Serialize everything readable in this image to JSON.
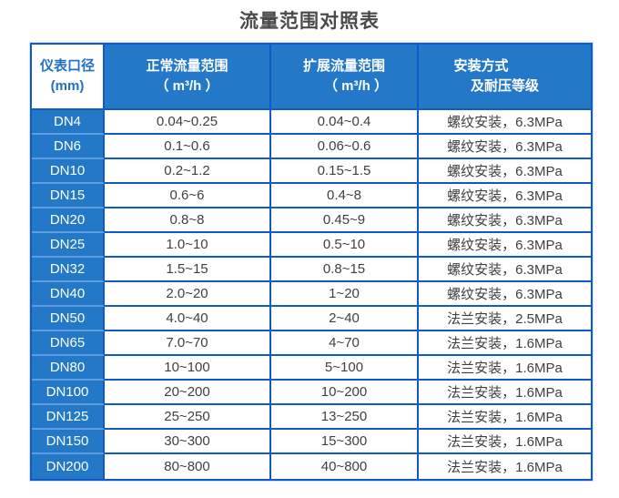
{
  "page": {
    "title": "流量范围对照表"
  },
  "colors": {
    "header_blue": "#2478c8",
    "grid_blue": "#1059c8",
    "label_divider_blue": "#5d9dde",
    "data_text": "#404040",
    "title_text": "#4a4a4a",
    "corner_text_blue": "#2071c2"
  },
  "table": {
    "header": {
      "col1": {
        "line1": "仪表口径",
        "line2": "(mm)"
      },
      "col2": {
        "line1": "正常流量范围",
        "line2": "（ m³/h ）"
      },
      "col3": {
        "line1": "扩展流量范围",
        "line2": "（ m³/h ）"
      },
      "col4": {
        "line1": "安装方式",
        "line2": "及耐压等级"
      }
    },
    "rows": [
      {
        "dn": "DN4",
        "normal": "0.04~0.25",
        "extended": "0.04~0.4",
        "install": "螺纹安装，6.3MPa"
      },
      {
        "dn": "DN6",
        "normal": "0.1~0.6",
        "extended": "0.06~0.6",
        "install": "螺纹安装，6.3MPa"
      },
      {
        "dn": "DN10",
        "normal": "0.2~1.2",
        "extended": "0.15~1.5",
        "install": "螺纹安装，6.3MPa"
      },
      {
        "dn": "DN15",
        "normal": "0.6~6",
        "extended": "0.4~8",
        "install": "螺纹安装，6.3MPa"
      },
      {
        "dn": "DN20",
        "normal": "0.8~8",
        "extended": "0.45~9",
        "install": "螺纹安装，6.3MPa"
      },
      {
        "dn": "DN25",
        "normal": "1.0~10",
        "extended": "0.5~10",
        "install": "螺纹安装，6.3MPa"
      },
      {
        "dn": "DN32",
        "normal": "1.5~15",
        "extended": "0.8~15",
        "install": "螺纹安装，6.3MPa"
      },
      {
        "dn": "DN40",
        "normal": "2.0~20",
        "extended": "1~20",
        "install": "螺纹安装，6.3MPa"
      },
      {
        "dn": "DN50",
        "normal": "4.0~40",
        "extended": "2~40",
        "install": "法兰安装，2.5MPa"
      },
      {
        "dn": "DN65",
        "normal": "7.0~70",
        "extended": "4~70",
        "install": "法兰安装，1.6MPa"
      },
      {
        "dn": "DN80",
        "normal": "10~100",
        "extended": "5~100",
        "install": "法兰安装，1.6MPa"
      },
      {
        "dn": "DN100",
        "normal": "20~200",
        "extended": "10~200",
        "install": "法兰安装，1.6MPa"
      },
      {
        "dn": "DN125",
        "normal": "25~250",
        "extended": "13~250",
        "install": "法兰安装，1.6MPa"
      },
      {
        "dn": "DN150",
        "normal": "30~300",
        "extended": "15~300",
        "install": "法兰安装，1.6MPa"
      },
      {
        "dn": "DN200",
        "normal": "80~800",
        "extended": "40~800",
        "install": "法兰安装，1.6MPa"
      }
    ]
  }
}
